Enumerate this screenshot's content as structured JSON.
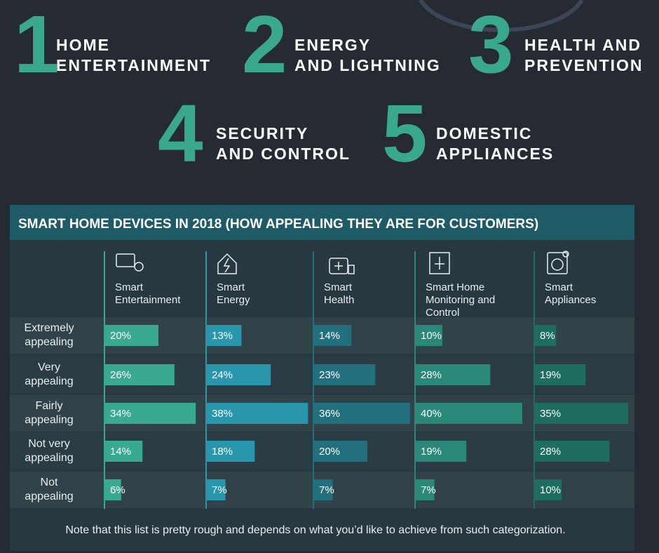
{
  "items": [
    {
      "number": 1,
      "lines": [
        "HOME",
        "ENTERTAINMENT"
      ]
    },
    {
      "number": 2,
      "lines": [
        "ENERGY",
        "AND LIGHTNING"
      ]
    },
    {
      "number": 3,
      "lines": [
        "HEALTH AND",
        "PREVENTION"
      ]
    },
    {
      "number": 4,
      "lines": [
        "SECURITY",
        "AND CONTROL"
      ]
    },
    {
      "number": 5,
      "lines": [
        "DOMESTIC",
        "APPLIANCES"
      ]
    }
  ],
  "chart_data": {
    "type": "bar",
    "orientation": "horizontal",
    "title": "SMART HOME DEVICES IN 2018 (HOW APPEALING THEY ARE FOR CUSTOMERS)",
    "categories": [
      "Extremely appealing",
      "Very appealing",
      "Fairly appealing",
      "Not very appealing",
      "Not appealing"
    ],
    "series": [
      {
        "name": "Smart Entertainment",
        "color": "#3aa991",
        "values": [
          20,
          26,
          34,
          14,
          6
        ],
        "value_labels": [
          "20%",
          "26%",
          "34%",
          "14%",
          "6%"
        ]
      },
      {
        "name": "Smart Energy",
        "color": "#2896ad",
        "values": [
          13,
          24,
          38,
          18,
          7
        ],
        "value_labels": [
          "13%",
          "24%",
          "38%",
          "18%",
          "7%"
        ]
      },
      {
        "name": "Smart Health",
        "color": "#226f7e",
        "values": [
          14,
          23,
          36,
          20,
          7
        ],
        "value_labels": [
          "14%",
          "23%",
          "36%",
          "20%",
          "7%"
        ]
      },
      {
        "name": "Smart Home Monitoring and Control",
        "color": "#2a8878",
        "values": [
          10,
          28,
          40,
          19,
          7
        ],
        "value_labels": [
          "10%",
          "28%",
          "40%",
          "19%",
          "7%"
        ]
      },
      {
        "name": "Smart Appliances",
        "color": "#1d6d60",
        "values": [
          8,
          19,
          35,
          28,
          10
        ],
        "value_labels": [
          "8%",
          "19%",
          "35%",
          "28%",
          "10%"
        ]
      }
    ],
    "note": "Note that this list is pretty rough and depends on what you’d like to achieve from such categorization."
  }
}
